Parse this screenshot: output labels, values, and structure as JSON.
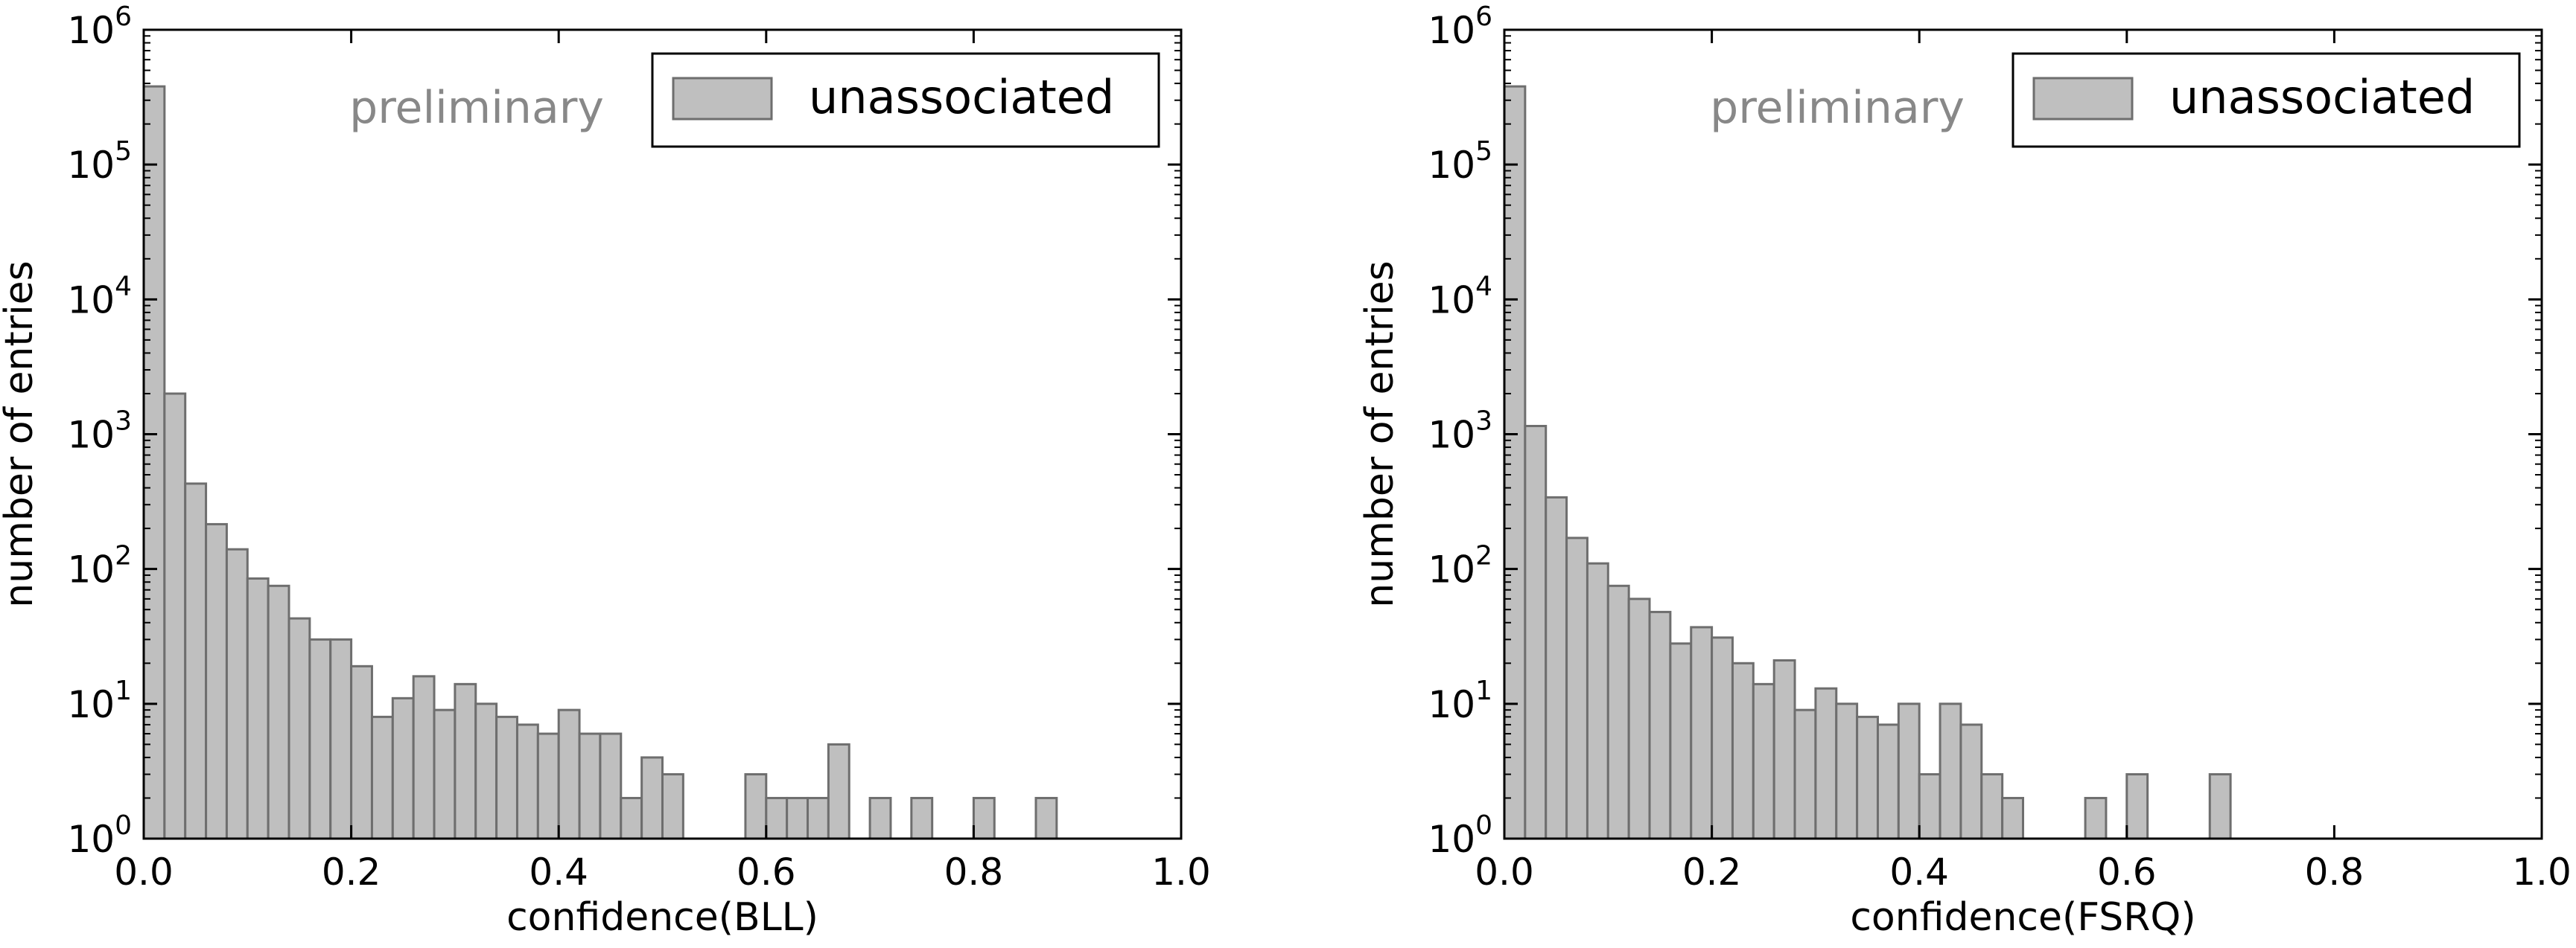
{
  "chart_data": [
    {
      "type": "bar",
      "xlabel": "confidence(BLL)",
      "ylabel": "number of entries",
      "annotation": "preliminary",
      "legend": {
        "label": "unassociated",
        "position": "top-right"
      },
      "bar_color": "#bfbfbf",
      "edge_color": "#6e6e6e",
      "xlim": [
        0,
        1.0
      ],
      "ylim": [
        1,
        1000000
      ],
      "yscale": "log",
      "bin_width": 0.02,
      "x_ticks": [
        "0.0",
        "0.2",
        "0.4",
        "0.6",
        "0.8",
        "1.0"
      ],
      "y_ticks": [
        {
          "base": "10",
          "exp": "0"
        },
        {
          "base": "10",
          "exp": "1"
        },
        {
          "base": "10",
          "exp": "2"
        },
        {
          "base": "10",
          "exp": "3"
        },
        {
          "base": "10",
          "exp": "4"
        },
        {
          "base": "10",
          "exp": "5"
        },
        {
          "base": "10",
          "exp": "6"
        }
      ],
      "values": [
        380000,
        2000,
        430,
        215,
        140,
        85,
        75,
        43,
        30,
        30,
        19,
        8,
        11,
        16,
        9,
        14,
        10,
        8,
        7,
        6,
        9,
        6,
        6,
        2,
        4,
        3,
        0,
        0,
        0,
        3,
        2,
        2,
        2,
        5,
        0,
        2,
        0,
        2,
        0,
        0,
        2,
        0,
        0,
        2,
        0,
        0,
        0,
        0,
        0,
        0
      ]
    },
    {
      "type": "bar",
      "xlabel": "confidence(FSRQ)",
      "ylabel": "number of entries",
      "annotation": "preliminary",
      "legend": {
        "label": "unassociated",
        "position": "top-right"
      },
      "bar_color": "#bfbfbf",
      "edge_color": "#6e6e6e",
      "xlim": [
        0,
        1.0
      ],
      "ylim": [
        1,
        1000000
      ],
      "yscale": "log",
      "bin_width": 0.02,
      "x_ticks": [
        "0.0",
        "0.2",
        "0.4",
        "0.6",
        "0.8",
        "1.0"
      ],
      "y_ticks": [
        {
          "base": "10",
          "exp": "0"
        },
        {
          "base": "10",
          "exp": "1"
        },
        {
          "base": "10",
          "exp": "2"
        },
        {
          "base": "10",
          "exp": "3"
        },
        {
          "base": "10",
          "exp": "4"
        },
        {
          "base": "10",
          "exp": "5"
        },
        {
          "base": "10",
          "exp": "6"
        }
      ],
      "values": [
        380000,
        1150,
        340,
        170,
        110,
        75,
        60,
        48,
        28,
        37,
        31,
        20,
        14,
        21,
        9,
        13,
        10,
        8,
        7,
        10,
        3,
        10,
        7,
        3,
        2,
        0,
        0,
        0,
        2,
        0,
        3,
        0,
        0,
        0,
        3,
        0,
        0,
        0,
        0,
        0,
        0,
        0,
        0,
        0,
        0,
        0,
        0,
        0,
        0,
        0
      ]
    }
  ]
}
